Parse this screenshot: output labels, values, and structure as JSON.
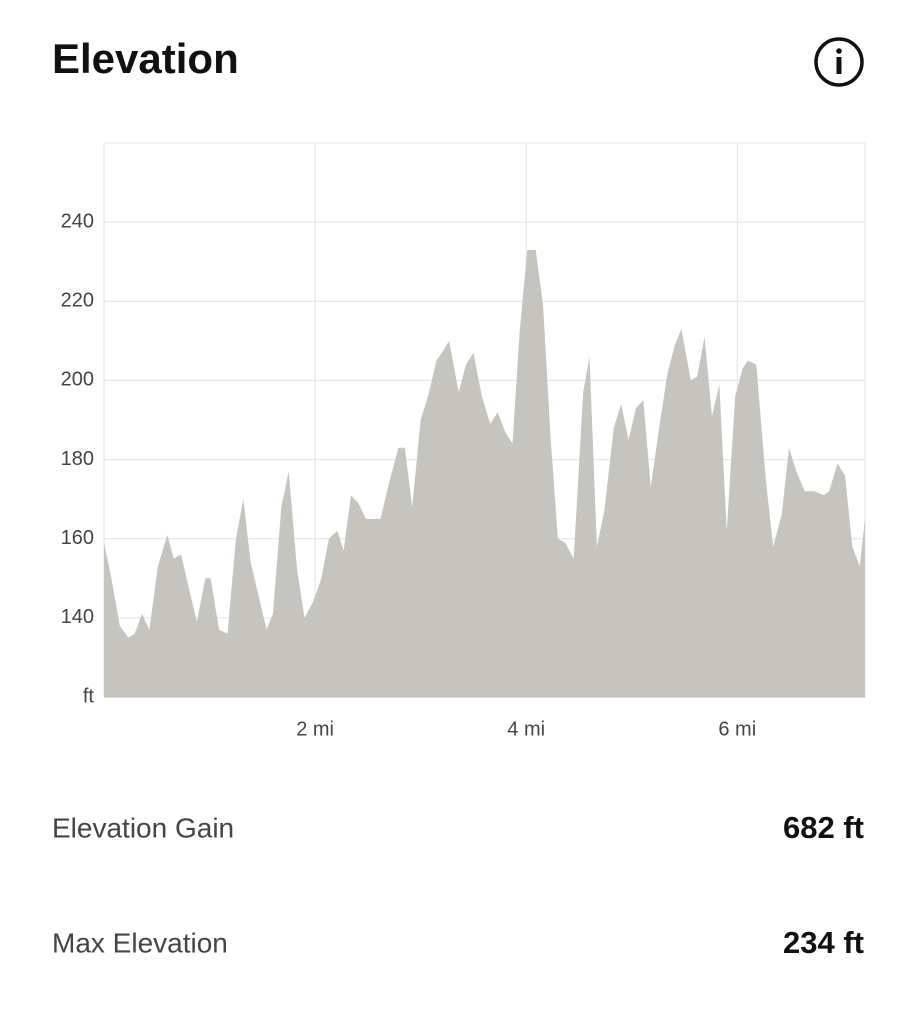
{
  "header": {
    "title": "Elevation"
  },
  "chart_data": {
    "type": "area",
    "color": "#c5c4bf",
    "grid": true,
    "xlim": [
      0,
      7.21
    ],
    "ylim": [
      120,
      260
    ],
    "xticks": [
      {
        "value": 2,
        "label": "2 mi"
      },
      {
        "value": 4,
        "label": "4 mi"
      },
      {
        "value": 6,
        "label": "6 mi"
      }
    ],
    "yticks": [
      {
        "value": 120,
        "label": "ft"
      },
      140,
      160,
      180,
      200,
      220,
      240
    ],
    "x": [
      0,
      0.07,
      0.15,
      0.23,
      0.29,
      0.36,
      0.43,
      0.51,
      0.6,
      0.66,
      0.73,
      0.8,
      0.88,
      0.96,
      1.01,
      1.09,
      1.17,
      1.25,
      1.32,
      1.39,
      1.47,
      1.54,
      1.6,
      1.68,
      1.75,
      1.83,
      1.9,
      1.98,
      2.06,
      2.13,
      2.21,
      2.27,
      2.34,
      2.41,
      2.48,
      2.55,
      2.62,
      2.69,
      2.79,
      2.85,
      2.92,
      3.0,
      3.07,
      3.15,
      3.2,
      3.27,
      3.36,
      3.43,
      3.5,
      3.58,
      3.66,
      3.73,
      3.8,
      3.87,
      3.94,
      4.01,
      4.09,
      4.16,
      4.23,
      4.3,
      4.37,
      4.45,
      4.54,
      4.6,
      4.67,
      4.74,
      4.83,
      4.9,
      4.97,
      5.04,
      5.11,
      5.18,
      5.26,
      5.34,
      5.41,
      5.47,
      5.56,
      5.62,
      5.69,
      5.76,
      5.83,
      5.9,
      5.98,
      6.05,
      6.1,
      6.18,
      6.27,
      6.34,
      6.42,
      6.49,
      6.56,
      6.64,
      6.73,
      6.82,
      6.87,
      6.95,
      7.02,
      7.09,
      7.16,
      7.21
    ],
    "values": [
      159,
      150,
      138,
      135,
      136,
      141,
      137,
      153,
      161,
      155,
      156,
      148,
      139,
      150,
      150,
      137,
      136,
      160,
      170,
      154,
      145,
      137,
      141,
      168,
      177,
      152,
      140,
      144,
      150,
      160,
      162,
      157,
      171,
      169,
      165,
      165,
      165,
      173,
      183,
      183,
      168,
      190,
      196,
      205,
      207,
      210,
      197,
      204,
      207,
      196,
      189,
      192,
      187,
      184,
      213,
      233,
      233,
      219,
      186,
      160,
      159,
      155,
      197,
      206,
      158,
      167,
      188,
      194,
      185,
      193,
      195,
      173,
      188,
      202,
      209,
      213,
      200,
      201,
      211,
      191,
      199,
      162,
      196,
      203,
      205,
      204,
      175,
      158,
      166,
      183,
      177,
      172,
      172,
      171,
      172,
      179,
      176,
      158,
      153,
      165
    ]
  },
  "stats": [
    {
      "label": "Elevation Gain",
      "value": "682 ft"
    },
    {
      "label": "Max Elevation",
      "value": "234 ft"
    }
  ]
}
